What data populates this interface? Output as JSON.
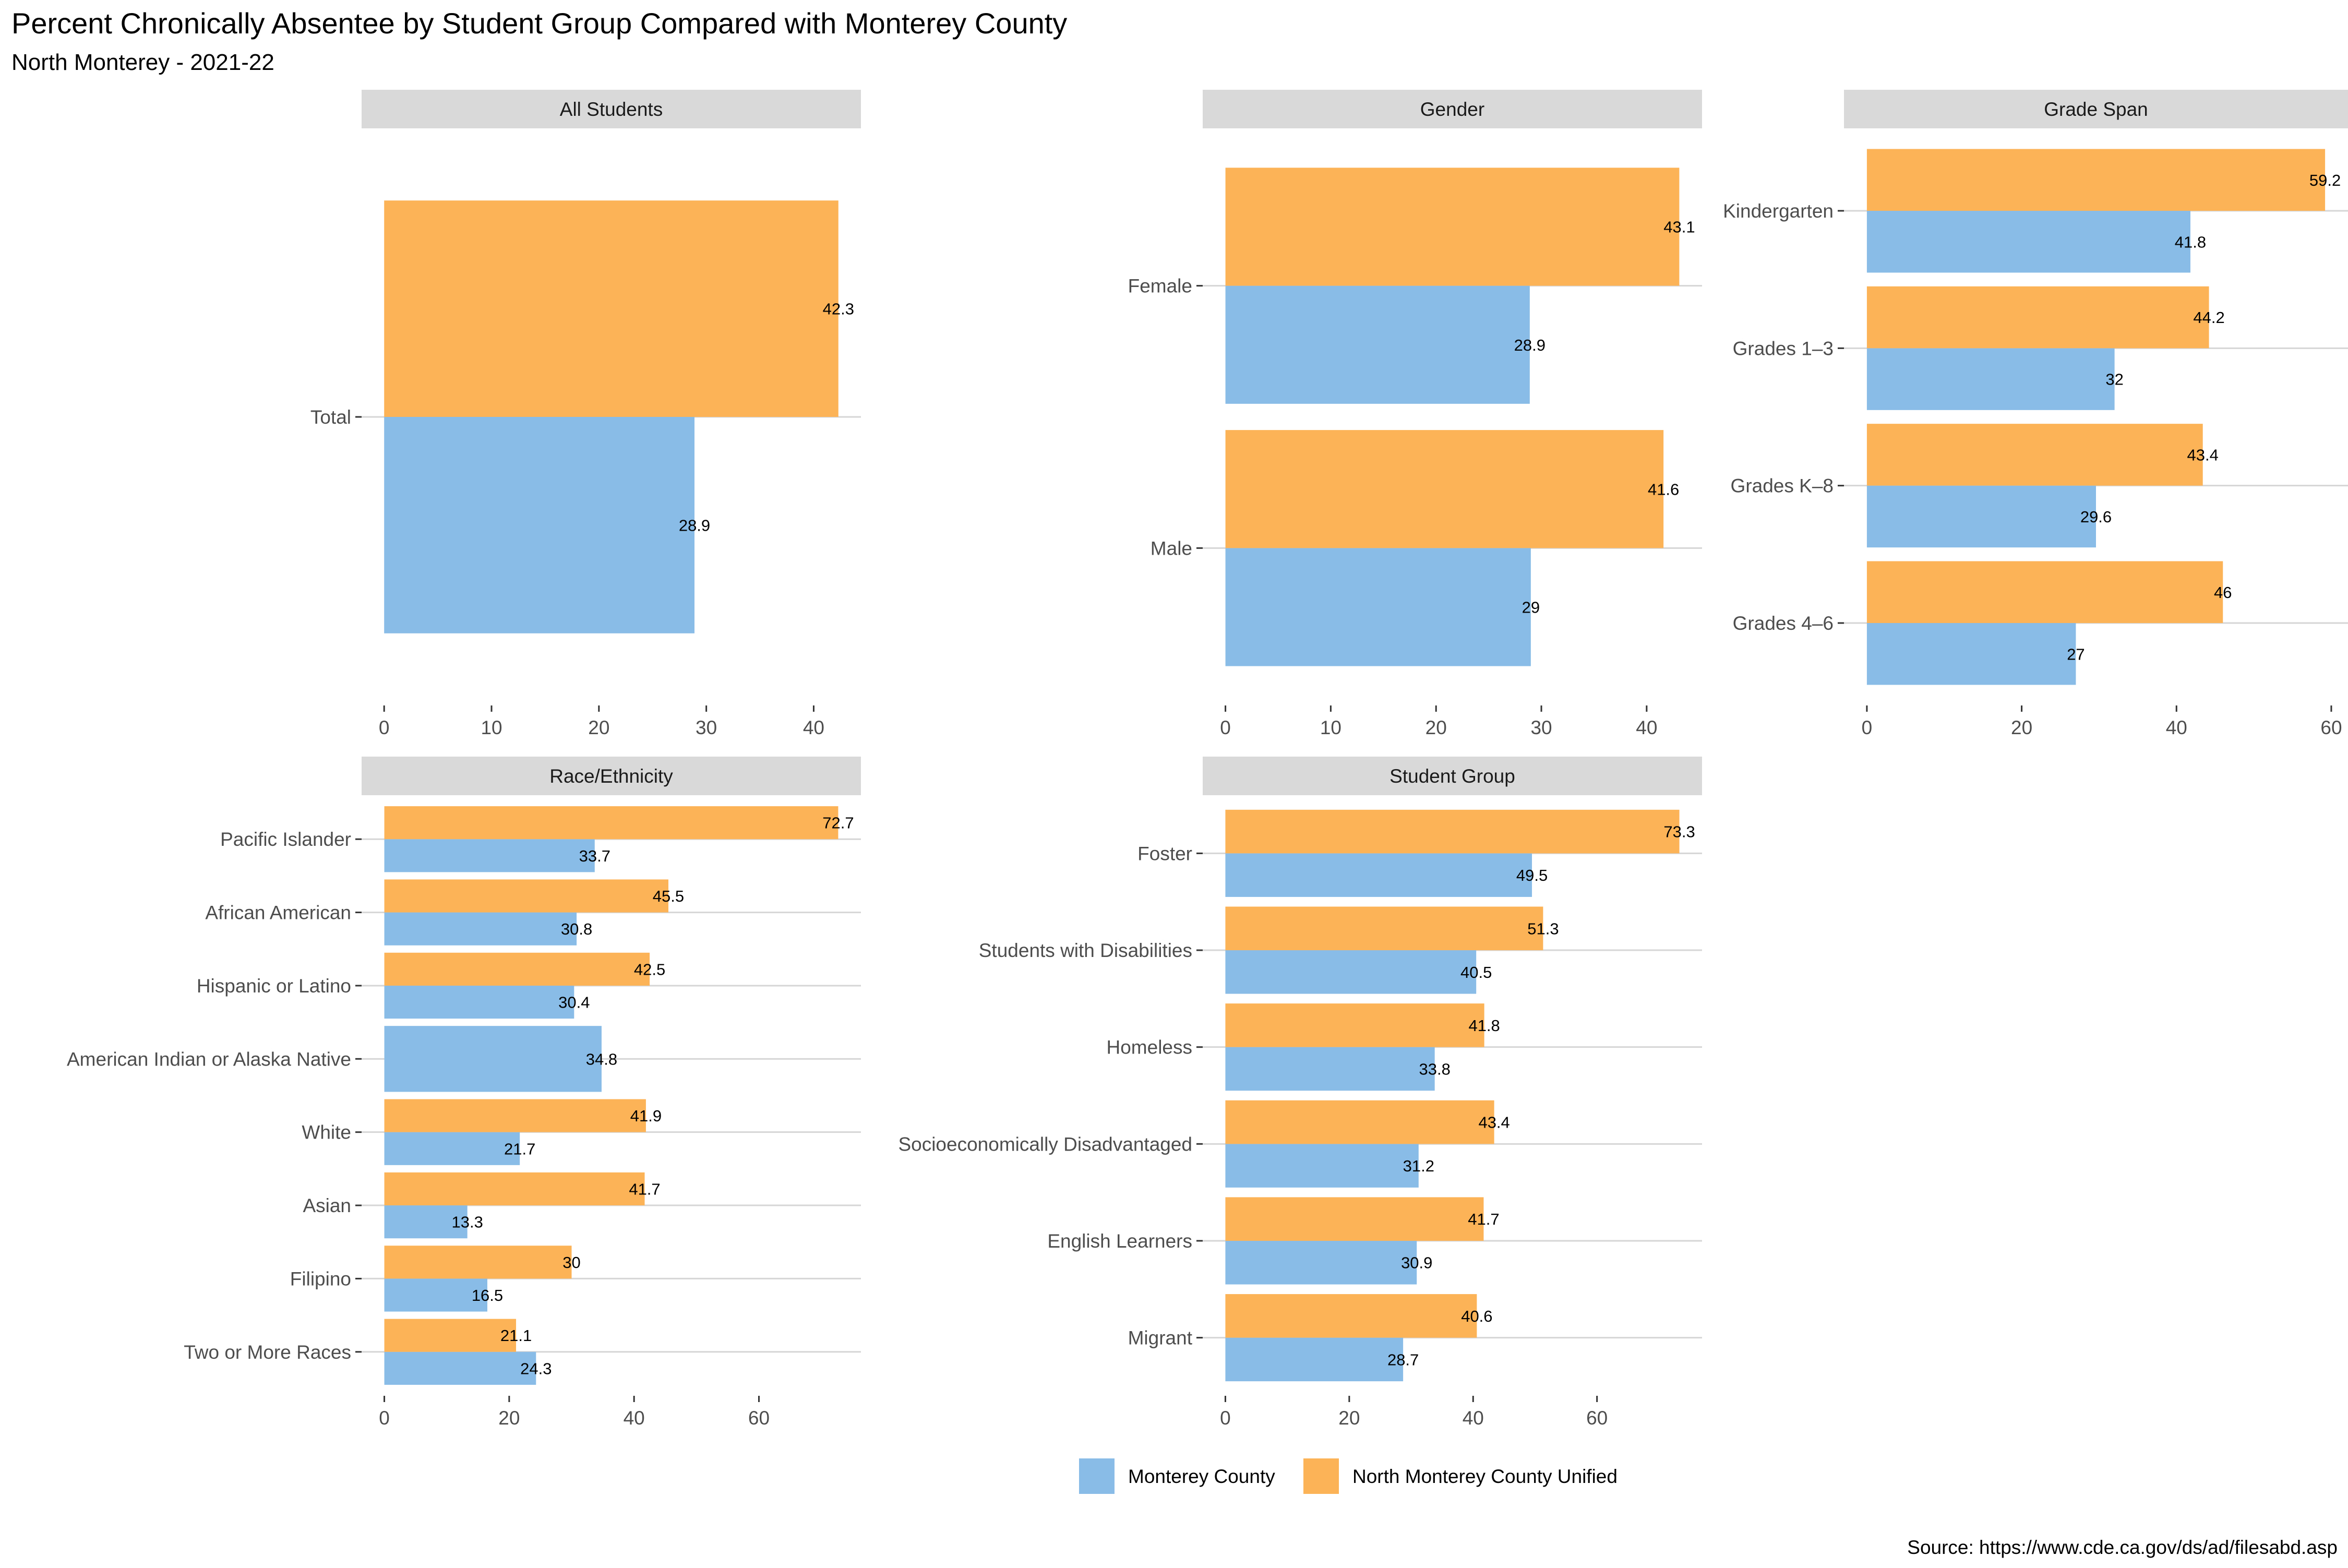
{
  "title": "Percent Chronically Absentee by Student Group Compared with Monterey County",
  "subtitle": "North Monterey - 2021-22",
  "caption": "Source: https://www.cde.ca.gov/ds/ad/filesabd.asp",
  "colors": {
    "county": "#89BCE6",
    "district": "#FCB357"
  },
  "legend": {
    "placement": "bottom",
    "items": [
      {
        "name": "Monterey County",
        "color": "#89BCE6"
      },
      {
        "name": "North Monterey County Unified",
        "color": "#FCB357"
      }
    ]
  },
  "chart_data": [
    {
      "type": "bar",
      "orientation": "horizontal",
      "title": "All Students",
      "categories": [
        "Total"
      ],
      "series": [
        {
          "name": "Monterey County",
          "values": [
            28.9
          ]
        },
        {
          "name": "North Monterey County Unified",
          "values": [
            42.3
          ]
        }
      ],
      "xticks": [
        0,
        10,
        20,
        30,
        40
      ],
      "xlim": [
        -2.1,
        44.4
      ]
    },
    {
      "type": "bar",
      "orientation": "horizontal",
      "title": "Gender",
      "categories": [
        "Female",
        "Male"
      ],
      "series": [
        {
          "name": "Monterey County",
          "values": [
            28.9,
            29
          ]
        },
        {
          "name": "North Monterey County Unified",
          "values": [
            43.1,
            41.6
          ]
        }
      ],
      "xticks": [
        0,
        10,
        20,
        30,
        40
      ],
      "xlim": [
        -2.16,
        45.26
      ]
    },
    {
      "type": "bar",
      "orientation": "horizontal",
      "title": "Grade Span",
      "categories": [
        "Kindergarten",
        "Grades 1–3",
        "Grades K–8",
        "Grades 4–6"
      ],
      "series": [
        {
          "name": "Monterey County",
          "values": [
            41.8,
            32,
            29.6,
            27
          ]
        },
        {
          "name": "North Monterey County Unified",
          "values": [
            59.2,
            44.2,
            43.4,
            46
          ]
        }
      ],
      "xticks": [
        0,
        20,
        40,
        60
      ],
      "xlim": [
        -2.96,
        62.16
      ]
    },
    {
      "type": "bar",
      "orientation": "horizontal",
      "title": "Race/Ethnicity",
      "categories": [
        "Pacific Islander",
        "African American",
        "Hispanic or Latino",
        "American Indian or Alaska Native",
        "White",
        "Asian",
        "Filipino",
        "Two or More Races"
      ],
      "series": [
        {
          "name": "Monterey County",
          "values": [
            33.7,
            30.8,
            30.4,
            34.8,
            21.7,
            13.3,
            16.5,
            24.3
          ]
        },
        {
          "name": "North Monterey County Unified",
          "values": [
            72.7,
            45.5,
            42.5,
            null,
            41.9,
            41.7,
            30,
            21.1
          ]
        }
      ],
      "xticks": [
        0,
        20,
        40,
        60
      ],
      "xlim": [
        -3.64,
        76.34
      ]
    },
    {
      "type": "bar",
      "orientation": "horizontal",
      "title": "Student Group",
      "categories": [
        "Foster",
        "Students with Disabilities",
        "Homeless",
        "Socioeconomically Disadvantaged",
        "English Learners",
        "Migrant"
      ],
      "series": [
        {
          "name": "Monterey County",
          "values": [
            49.5,
            40.5,
            33.8,
            31.2,
            30.9,
            28.7
          ]
        },
        {
          "name": "North Monterey County Unified",
          "values": [
            73.3,
            51.3,
            41.8,
            43.4,
            41.7,
            40.6
          ]
        }
      ],
      "xticks": [
        0,
        20,
        40,
        60
      ],
      "xlim": [
        -3.66,
        76.96
      ]
    }
  ]
}
